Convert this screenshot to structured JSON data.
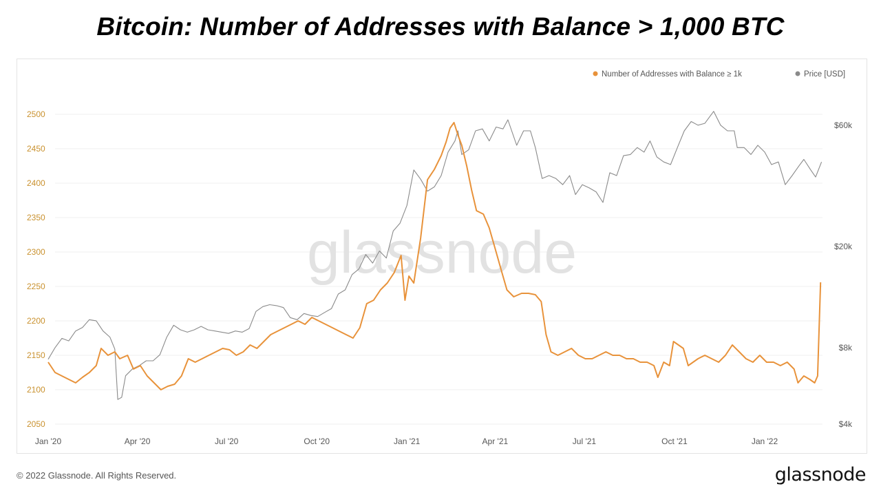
{
  "title": "Bitcoin: Number of Addresses with Balance > 1,000 BTC",
  "watermark": "glassnode",
  "footer": {
    "copyright": "© 2022 Glassnode. All Rights Reserved.",
    "brand": "glassnode"
  },
  "colors": {
    "addresses": "#e8923a",
    "price": "#8a8a8a",
    "left_axis_text": "#c9912e",
    "right_axis_text": "#555555"
  },
  "chart_data": {
    "type": "line",
    "title": "Bitcoin: Number of Addresses with Balance > 1,000 BTC",
    "legend_placement": "top-right",
    "grid": true,
    "x_axis": {
      "type": "date",
      "range": [
        "2020-01-01",
        "2022-03-01"
      ],
      "tick_labels": [
        {
          "date": "2020-01-01",
          "label": "Jan '20"
        },
        {
          "date": "2020-04-01",
          "label": "Apr '20"
        },
        {
          "date": "2020-07-01",
          "label": "Jul '20"
        },
        {
          "date": "2020-10-01",
          "label": "Oct '20"
        },
        {
          "date": "2021-01-01",
          "label": "Jan '21"
        },
        {
          "date": "2021-04-01",
          "label": "Apr '21"
        },
        {
          "date": "2021-07-01",
          "label": "Jul '21"
        },
        {
          "date": "2021-10-01",
          "label": "Oct '21"
        },
        {
          "date": "2022-01-01",
          "label": "Jan '22"
        }
      ]
    },
    "y_left": {
      "range": [
        2050,
        2520
      ],
      "ticks": [
        2050,
        2100,
        2150,
        2200,
        2250,
        2300,
        2350,
        2400,
        2450,
        2500
      ]
    },
    "y_right": {
      "scale": "log",
      "range": [
        4000,
        75000
      ],
      "ticks": [
        {
          "value": 4000,
          "label": "$4k"
        },
        {
          "value": 8000,
          "label": "$8k"
        },
        {
          "value": 20000,
          "label": "$20k"
        },
        {
          "value": 60000,
          "label": "$60k"
        }
      ]
    },
    "series": [
      {
        "name": "Number of Addresses with Balance ≥ 1k",
        "axis": "left",
        "points": [
          [
            "2020-01-01",
            2140
          ],
          [
            "2020-01-08",
            2125
          ],
          [
            "2020-01-15",
            2120
          ],
          [
            "2020-01-22",
            2115
          ],
          [
            "2020-01-29",
            2110
          ],
          [
            "2020-02-05",
            2118
          ],
          [
            "2020-02-12",
            2125
          ],
          [
            "2020-02-19",
            2135
          ],
          [
            "2020-02-24",
            2160
          ],
          [
            "2020-03-02",
            2150
          ],
          [
            "2020-03-09",
            2155
          ],
          [
            "2020-03-14",
            2145
          ],
          [
            "2020-03-22",
            2150
          ],
          [
            "2020-03-28",
            2130
          ],
          [
            "2020-04-04",
            2135
          ],
          [
            "2020-04-11",
            2120
          ],
          [
            "2020-04-18",
            2110
          ],
          [
            "2020-04-25",
            2100
          ],
          [
            "2020-05-02",
            2105
          ],
          [
            "2020-05-09",
            2108
          ],
          [
            "2020-05-16",
            2120
          ],
          [
            "2020-05-23",
            2145
          ],
          [
            "2020-05-30",
            2140
          ],
          [
            "2020-06-06",
            2145
          ],
          [
            "2020-06-13",
            2150
          ],
          [
            "2020-06-20",
            2155
          ],
          [
            "2020-06-27",
            2160
          ],
          [
            "2020-07-04",
            2158
          ],
          [
            "2020-07-11",
            2150
          ],
          [
            "2020-07-18",
            2155
          ],
          [
            "2020-07-25",
            2165
          ],
          [
            "2020-08-01",
            2160
          ],
          [
            "2020-08-08",
            2170
          ],
          [
            "2020-08-15",
            2180
          ],
          [
            "2020-08-22",
            2185
          ],
          [
            "2020-08-29",
            2190
          ],
          [
            "2020-09-05",
            2195
          ],
          [
            "2020-09-12",
            2200
          ],
          [
            "2020-09-19",
            2195
          ],
          [
            "2020-09-26",
            2205
          ],
          [
            "2020-10-03",
            2200
          ],
          [
            "2020-10-10",
            2195
          ],
          [
            "2020-10-17",
            2190
          ],
          [
            "2020-10-24",
            2185
          ],
          [
            "2020-10-31",
            2180
          ],
          [
            "2020-11-07",
            2175
          ],
          [
            "2020-11-14",
            2190
          ],
          [
            "2020-11-21",
            2225
          ],
          [
            "2020-11-28",
            2230
          ],
          [
            "2020-12-05",
            2245
          ],
          [
            "2020-12-12",
            2255
          ],
          [
            "2020-12-19",
            2270
          ],
          [
            "2020-12-26",
            2295
          ],
          [
            "2020-12-30",
            2230
          ],
          [
            "2021-01-03",
            2265
          ],
          [
            "2021-01-08",
            2255
          ],
          [
            "2021-01-15",
            2320
          ],
          [
            "2021-01-22",
            2405
          ],
          [
            "2021-01-29",
            2420
          ],
          [
            "2021-02-05",
            2440
          ],
          [
            "2021-02-10",
            2460
          ],
          [
            "2021-02-14",
            2480
          ],
          [
            "2021-02-18",
            2488
          ],
          [
            "2021-02-22",
            2470
          ],
          [
            "2021-02-26",
            2455
          ],
          [
            "2021-03-03",
            2425
          ],
          [
            "2021-03-08",
            2390
          ],
          [
            "2021-03-13",
            2360
          ],
          [
            "2021-03-20",
            2355
          ],
          [
            "2021-03-26",
            2335
          ],
          [
            "2021-04-02",
            2300
          ],
          [
            "2021-04-08",
            2270
          ],
          [
            "2021-04-13",
            2245
          ],
          [
            "2021-04-20",
            2235
          ],
          [
            "2021-04-28",
            2240
          ],
          [
            "2021-05-05",
            2240
          ],
          [
            "2021-05-12",
            2238
          ],
          [
            "2021-05-18",
            2228
          ],
          [
            "2021-05-23",
            2180
          ],
          [
            "2021-05-28",
            2155
          ],
          [
            "2021-06-04",
            2150
          ],
          [
            "2021-06-11",
            2155
          ],
          [
            "2021-06-18",
            2160
          ],
          [
            "2021-06-25",
            2150
          ],
          [
            "2021-07-02",
            2145
          ],
          [
            "2021-07-09",
            2145
          ],
          [
            "2021-07-16",
            2150
          ],
          [
            "2021-07-23",
            2155
          ],
          [
            "2021-07-30",
            2150
          ],
          [
            "2021-08-06",
            2150
          ],
          [
            "2021-08-13",
            2145
          ],
          [
            "2021-08-20",
            2145
          ],
          [
            "2021-08-27",
            2140
          ],
          [
            "2021-09-03",
            2140
          ],
          [
            "2021-09-10",
            2135
          ],
          [
            "2021-09-14",
            2118
          ],
          [
            "2021-09-20",
            2140
          ],
          [
            "2021-09-26",
            2135
          ],
          [
            "2021-09-30",
            2170
          ],
          [
            "2021-10-05",
            2165
          ],
          [
            "2021-10-10",
            2160
          ],
          [
            "2021-10-15",
            2135
          ],
          [
            "2021-10-20",
            2140
          ],
          [
            "2021-10-25",
            2145
          ],
          [
            "2021-11-01",
            2150
          ],
          [
            "2021-11-08",
            2145
          ],
          [
            "2021-11-15",
            2140
          ],
          [
            "2021-11-22",
            2150
          ],
          [
            "2021-11-29",
            2165
          ],
          [
            "2021-12-06",
            2155
          ],
          [
            "2021-12-13",
            2145
          ],
          [
            "2021-12-20",
            2140
          ],
          [
            "2021-12-27",
            2150
          ],
          [
            "2022-01-03",
            2140
          ],
          [
            "2022-01-10",
            2140
          ],
          [
            "2022-01-17",
            2135
          ],
          [
            "2022-01-24",
            2140
          ],
          [
            "2022-01-31",
            2130
          ],
          [
            "2022-02-04",
            2110
          ],
          [
            "2022-02-10",
            2120
          ],
          [
            "2022-02-16",
            2115
          ],
          [
            "2022-02-21",
            2110
          ],
          [
            "2022-02-24",
            2120
          ],
          [
            "2022-02-27",
            2256
          ]
        ]
      },
      {
        "name": "Price [USD]",
        "axis": "right",
        "points": [
          [
            "2020-01-01",
            7200
          ],
          [
            "2020-01-08",
            8000
          ],
          [
            "2020-01-15",
            8700
          ],
          [
            "2020-01-22",
            8500
          ],
          [
            "2020-01-29",
            9300
          ],
          [
            "2020-02-05",
            9600
          ],
          [
            "2020-02-12",
            10300
          ],
          [
            "2020-02-19",
            10200
          ],
          [
            "2020-02-26",
            9300
          ],
          [
            "2020-03-04",
            8800
          ],
          [
            "2020-03-09",
            7900
          ],
          [
            "2020-03-12",
            5000
          ],
          [
            "2020-03-16",
            5100
          ],
          [
            "2020-03-20",
            6200
          ],
          [
            "2020-03-27",
            6600
          ],
          [
            "2020-04-03",
            6800
          ],
          [
            "2020-04-10",
            7100
          ],
          [
            "2020-04-17",
            7100
          ],
          [
            "2020-04-24",
            7500
          ],
          [
            "2020-05-01",
            8800
          ],
          [
            "2020-05-08",
            9800
          ],
          [
            "2020-05-15",
            9400
          ],
          [
            "2020-05-22",
            9200
          ],
          [
            "2020-05-29",
            9400
          ],
          [
            "2020-06-05",
            9700
          ],
          [
            "2020-06-12",
            9400
          ],
          [
            "2020-06-19",
            9300
          ],
          [
            "2020-06-26",
            9200
          ],
          [
            "2020-07-03",
            9100
          ],
          [
            "2020-07-10",
            9300
          ],
          [
            "2020-07-17",
            9200
          ],
          [
            "2020-07-24",
            9500
          ],
          [
            "2020-07-31",
            11100
          ],
          [
            "2020-08-07",
            11600
          ],
          [
            "2020-08-14",
            11800
          ],
          [
            "2020-08-21",
            11700
          ],
          [
            "2020-08-28",
            11500
          ],
          [
            "2020-09-04",
            10500
          ],
          [
            "2020-09-11",
            10300
          ],
          [
            "2020-09-18",
            10900
          ],
          [
            "2020-09-25",
            10700
          ],
          [
            "2020-10-02",
            10600
          ],
          [
            "2020-10-09",
            11000
          ],
          [
            "2020-10-16",
            11400
          ],
          [
            "2020-10-23",
            13000
          ],
          [
            "2020-10-30",
            13500
          ],
          [
            "2020-11-06",
            15500
          ],
          [
            "2020-11-13",
            16300
          ],
          [
            "2020-11-20",
            18600
          ],
          [
            "2020-11-27",
            17200
          ],
          [
            "2020-12-04",
            19200
          ],
          [
            "2020-12-11",
            18000
          ],
          [
            "2020-12-18",
            23000
          ],
          [
            "2020-12-25",
            24700
          ],
          [
            "2021-01-01",
            29000
          ],
          [
            "2021-01-08",
            40000
          ],
          [
            "2021-01-15",
            36800
          ],
          [
            "2021-01-22",
            33000
          ],
          [
            "2021-01-29",
            34300
          ],
          [
            "2021-02-05",
            38000
          ],
          [
            "2021-02-12",
            47000
          ],
          [
            "2021-02-19",
            52000
          ],
          [
            "2021-02-22",
            57000
          ],
          [
            "2021-02-26",
            46000
          ],
          [
            "2021-03-05",
            48000
          ],
          [
            "2021-03-12",
            57000
          ],
          [
            "2021-03-19",
            58000
          ],
          [
            "2021-03-26",
            52000
          ],
          [
            "2021-04-02",
            59000
          ],
          [
            "2021-04-09",
            58000
          ],
          [
            "2021-04-14",
            63000
          ],
          [
            "2021-04-23",
            50000
          ],
          [
            "2021-04-30",
            57000
          ],
          [
            "2021-05-07",
            57000
          ],
          [
            "2021-05-12",
            49000
          ],
          [
            "2021-05-19",
            37000
          ],
          [
            "2021-05-26",
            38000
          ],
          [
            "2021-06-02",
            37000
          ],
          [
            "2021-06-09",
            35000
          ],
          [
            "2021-06-16",
            38000
          ],
          [
            "2021-06-22",
            32000
          ],
          [
            "2021-06-29",
            35000
          ],
          [
            "2021-07-06",
            34000
          ],
          [
            "2021-07-13",
            32800
          ],
          [
            "2021-07-20",
            29800
          ],
          [
            "2021-07-27",
            39000
          ],
          [
            "2021-08-03",
            38000
          ],
          [
            "2021-08-10",
            45500
          ],
          [
            "2021-08-17",
            46000
          ],
          [
            "2021-08-24",
            49000
          ],
          [
            "2021-08-31",
            47000
          ],
          [
            "2021-09-06",
            52000
          ],
          [
            "2021-09-13",
            45000
          ],
          [
            "2021-09-20",
            43000
          ],
          [
            "2021-09-27",
            42000
          ],
          [
            "2021-10-04",
            49000
          ],
          [
            "2021-10-11",
            57000
          ],
          [
            "2021-10-18",
            62000
          ],
          [
            "2021-10-25",
            60000
          ],
          [
            "2021-11-01",
            61000
          ],
          [
            "2021-11-10",
            68000
          ],
          [
            "2021-11-17",
            60000
          ],
          [
            "2021-11-24",
            57000
          ],
          [
            "2021-12-01",
            57000
          ],
          [
            "2021-12-04",
            49000
          ],
          [
            "2021-12-11",
            49000
          ],
          [
            "2021-12-18",
            46000
          ],
          [
            "2021-12-25",
            50000
          ],
          [
            "2022-01-01",
            47000
          ],
          [
            "2022-01-08",
            42000
          ],
          [
            "2022-01-15",
            43000
          ],
          [
            "2022-01-22",
            35000
          ],
          [
            "2022-01-29",
            38000
          ],
          [
            "2022-02-05",
            41500
          ],
          [
            "2022-02-10",
            44000
          ],
          [
            "2022-02-17",
            40000
          ],
          [
            "2022-02-22",
            37500
          ],
          [
            "2022-02-28",
            43000
          ]
        ]
      }
    ]
  }
}
